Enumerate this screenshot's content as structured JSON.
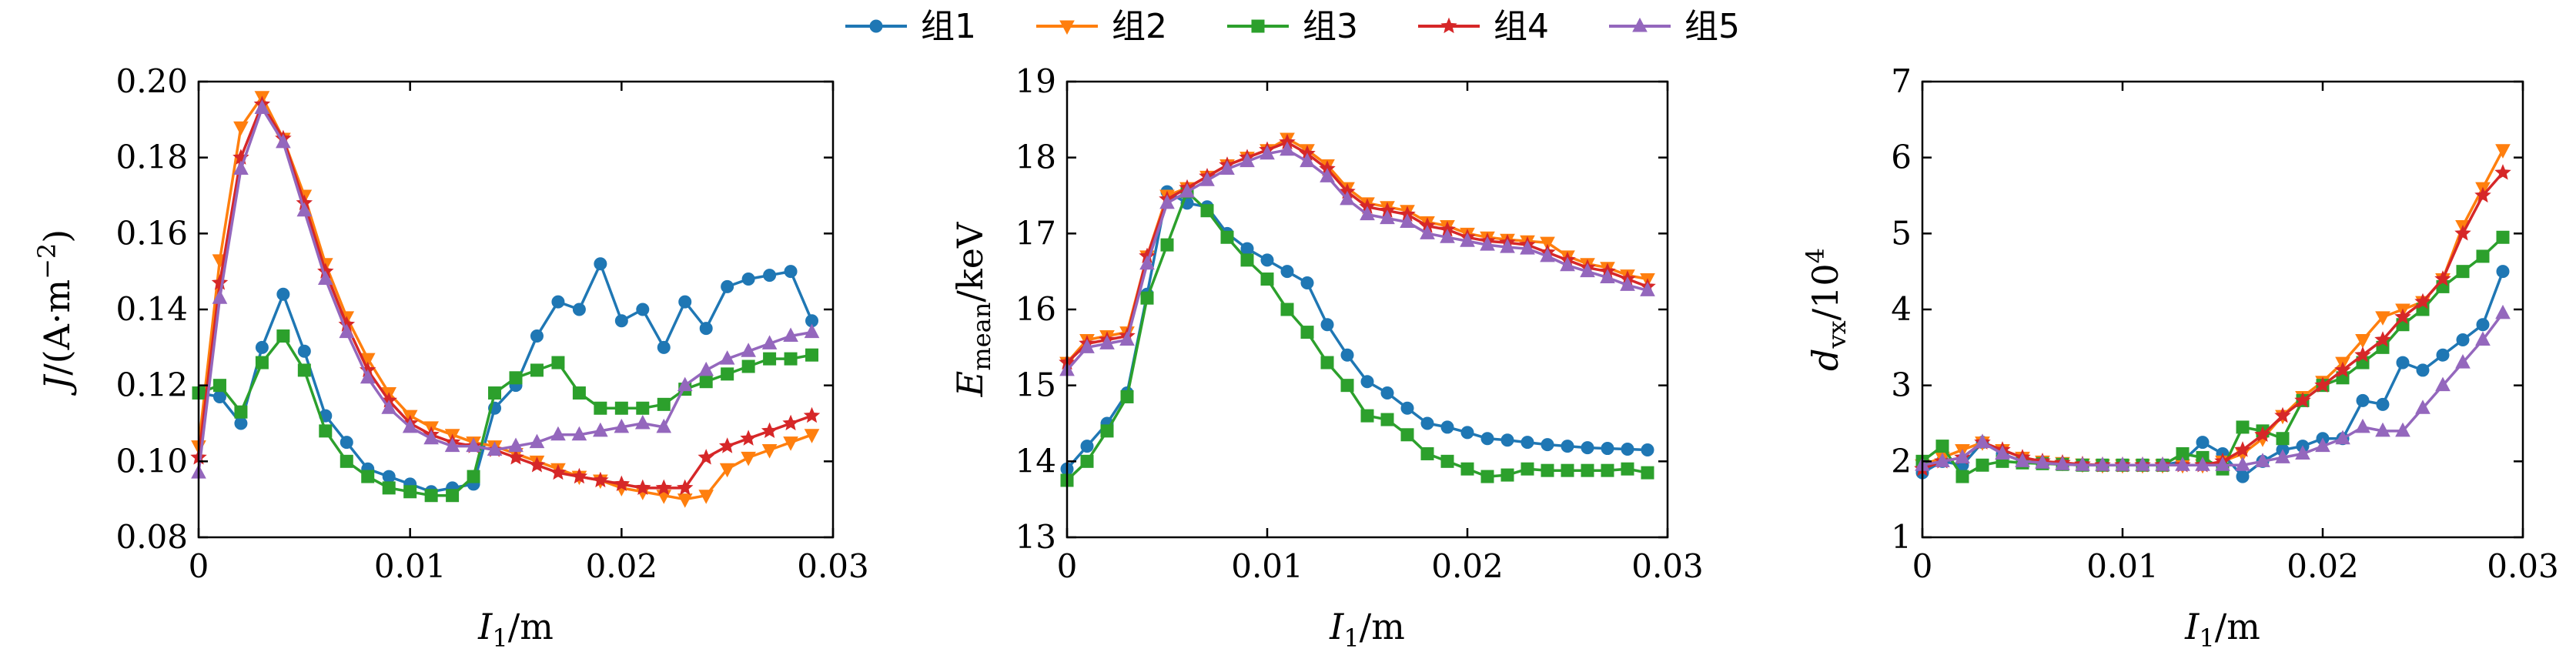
{
  "chart_data": [
    {
      "type": "line",
      "xlabel": "I1/m",
      "ylabel": "J/(A·m^-2)",
      "xlim": [
        0,
        0.03
      ],
      "ylim": [
        0.08,
        0.2
      ],
      "xticks": [
        0,
        0.01,
        0.02,
        0.03
      ],
      "xtick_labels": [
        "0",
        "0.01",
        "0.02",
        "0.03"
      ],
      "yticks": [
        0.08,
        0.1,
        0.12,
        0.14,
        0.16,
        0.18,
        0.2
      ],
      "ytick_labels": [
        "0.08",
        "0.10",
        "0.12",
        "0.14",
        "0.16",
        "0.18",
        "0.20"
      ],
      "grid": false,
      "x": [
        0,
        0.001,
        0.002,
        0.003,
        0.004,
        0.005,
        0.006,
        0.007,
        0.008,
        0.009,
        0.01,
        0.011,
        0.012,
        0.013,
        0.014,
        0.015,
        0.016,
        0.017,
        0.018,
        0.019,
        0.02,
        0.021,
        0.022,
        0.023,
        0.024,
        0.025,
        0.026,
        0.027,
        0.028,
        0.029
      ],
      "series": [
        {
          "name": "组1",
          "values": [
            0.118,
            0.117,
            0.11,
            0.13,
            0.144,
            0.129,
            0.112,
            0.105,
            0.098,
            0.096,
            0.094,
            0.092,
            0.093,
            0.094,
            0.114,
            0.12,
            0.133,
            0.142,
            0.14,
            0.152,
            0.137,
            0.14,
            0.13,
            0.142,
            0.135,
            0.146,
            0.148,
            0.149,
            0.15,
            0.137
          ]
        },
        {
          "name": "组2",
          "values": [
            0.104,
            0.153,
            0.188,
            0.196,
            0.185,
            0.17,
            0.152,
            0.138,
            0.127,
            0.118,
            0.112,
            0.109,
            0.107,
            0.105,
            0.104,
            0.102,
            0.1,
            0.098,
            0.096,
            0.095,
            0.093,
            0.092,
            0.091,
            0.09,
            0.091,
            0.098,
            0.101,
            0.103,
            0.105,
            0.107
          ]
        },
        {
          "name": "组3",
          "values": [
            0.118,
            0.12,
            0.113,
            0.126,
            0.133,
            0.124,
            0.108,
            0.1,
            0.096,
            0.093,
            0.092,
            0.091,
            0.091,
            0.096,
            0.118,
            0.122,
            0.124,
            0.126,
            0.118,
            0.114,
            0.114,
            0.114,
            0.115,
            0.119,
            0.121,
            0.123,
            0.125,
            0.127,
            0.127,
            0.128
          ]
        },
        {
          "name": "组4",
          "values": [
            0.101,
            0.147,
            0.18,
            0.194,
            0.185,
            0.168,
            0.15,
            0.136,
            0.124,
            0.116,
            0.11,
            0.107,
            0.105,
            0.104,
            0.103,
            0.101,
            0.099,
            0.097,
            0.096,
            0.095,
            0.094,
            0.093,
            0.093,
            0.093,
            0.101,
            0.104,
            0.106,
            0.108,
            0.11,
            0.112
          ]
        },
        {
          "name": "组5",
          "values": [
            0.097,
            0.143,
            0.177,
            0.193,
            0.184,
            0.166,
            0.148,
            0.134,
            0.122,
            0.114,
            0.109,
            0.106,
            0.104,
            0.104,
            0.103,
            0.104,
            0.105,
            0.107,
            0.107,
            0.108,
            0.109,
            0.11,
            0.109,
            0.12,
            0.124,
            0.127,
            0.129,
            0.131,
            0.133,
            0.134
          ]
        }
      ]
    },
    {
      "type": "line",
      "xlabel": "I1/m",
      "ylabel": "E_mean/keV",
      "xlim": [
        0,
        0.03
      ],
      "ylim": [
        13,
        19
      ],
      "xticks": [
        0,
        0.01,
        0.02,
        0.03
      ],
      "xtick_labels": [
        "0",
        "0.01",
        "0.02",
        "0.03"
      ],
      "yticks": [
        13,
        14,
        15,
        16,
        17,
        18,
        19
      ],
      "ytick_labels": [
        "13",
        "14",
        "15",
        "16",
        "17",
        "18",
        "19"
      ],
      "grid": false,
      "x": [
        0,
        0.001,
        0.002,
        0.003,
        0.004,
        0.005,
        0.006,
        0.007,
        0.008,
        0.009,
        0.01,
        0.011,
        0.012,
        0.013,
        0.014,
        0.015,
        0.016,
        0.017,
        0.018,
        0.019,
        0.02,
        0.021,
        0.022,
        0.023,
        0.024,
        0.025,
        0.026,
        0.027,
        0.028,
        0.029
      ],
      "series": [
        {
          "name": "组1",
          "values": [
            13.9,
            14.2,
            14.5,
            14.9,
            16.2,
            17.55,
            17.4,
            17.35,
            17.0,
            16.8,
            16.65,
            16.5,
            16.35,
            15.8,
            15.4,
            15.05,
            14.9,
            14.7,
            14.5,
            14.45,
            14.38,
            14.3,
            14.28,
            14.25,
            14.22,
            14.2,
            14.18,
            14.17,
            14.16,
            14.15
          ]
        },
        {
          "name": "组2",
          "values": [
            15.3,
            15.6,
            15.65,
            15.7,
            16.7,
            17.5,
            17.6,
            17.75,
            17.9,
            18.0,
            18.1,
            18.25,
            18.1,
            17.9,
            17.6,
            17.4,
            17.35,
            17.3,
            17.15,
            17.1,
            17.0,
            16.95,
            16.92,
            16.9,
            16.88,
            16.7,
            16.6,
            16.55,
            16.45,
            16.4
          ]
        },
        {
          "name": "组3",
          "values": [
            13.75,
            14.0,
            14.4,
            14.85,
            16.15,
            16.85,
            17.55,
            17.3,
            16.95,
            16.65,
            16.4,
            16.0,
            15.7,
            15.3,
            15.0,
            14.6,
            14.55,
            14.35,
            14.1,
            14.0,
            13.9,
            13.8,
            13.82,
            13.9,
            13.88,
            13.88,
            13.88,
            13.88,
            13.9,
            13.85
          ]
        },
        {
          "name": "组4",
          "values": [
            15.3,
            15.55,
            15.6,
            15.65,
            16.7,
            17.45,
            17.6,
            17.75,
            17.9,
            18.0,
            18.1,
            18.2,
            18.05,
            17.85,
            17.55,
            17.35,
            17.3,
            17.25,
            17.1,
            17.05,
            16.95,
            16.9,
            16.88,
            16.85,
            16.75,
            16.65,
            16.55,
            16.5,
            16.4,
            16.3
          ]
        },
        {
          "name": "组5",
          "values": [
            15.2,
            15.5,
            15.55,
            15.6,
            16.6,
            17.4,
            17.55,
            17.7,
            17.85,
            17.95,
            18.05,
            18.1,
            17.95,
            17.75,
            17.45,
            17.25,
            17.2,
            17.15,
            17.0,
            16.95,
            16.9,
            16.85,
            16.82,
            16.8,
            16.7,
            16.58,
            16.5,
            16.42,
            16.32,
            16.25
          ]
        }
      ]
    },
    {
      "type": "line",
      "xlabel": "I1/m",
      "ylabel": "d_vx/10^4",
      "xlim": [
        0,
        0.03
      ],
      "ylim": [
        1,
        7
      ],
      "xticks": [
        0,
        0.01,
        0.02,
        0.03
      ],
      "xtick_labels": [
        "0",
        "0.01",
        "0.02",
        "0.03"
      ],
      "yticks": [
        1,
        2,
        3,
        4,
        5,
        6,
        7
      ],
      "ytick_labels": [
        "1",
        "2",
        "3",
        "4",
        "5",
        "6",
        "7"
      ],
      "grid": false,
      "x": [
        0,
        0.001,
        0.002,
        0.003,
        0.004,
        0.005,
        0.006,
        0.007,
        0.008,
        0.009,
        0.01,
        0.011,
        0.012,
        0.013,
        0.014,
        0.015,
        0.016,
        0.017,
        0.018,
        0.019,
        0.02,
        0.021,
        0.022,
        0.023,
        0.024,
        0.025,
        0.026,
        0.027,
        0.028,
        0.029
      ],
      "series": [
        {
          "name": "组1",
          "values": [
            1.85,
            2.0,
            1.95,
            2.25,
            2.1,
            2.0,
            1.98,
            1.97,
            1.95,
            1.95,
            1.95,
            1.95,
            1.95,
            2.0,
            2.25,
            2.1,
            1.8,
            2.0,
            2.15,
            2.2,
            2.3,
            2.3,
            2.8,
            2.75,
            3.3,
            3.2,
            3.4,
            3.6,
            3.8,
            4.5
          ]
        },
        {
          "name": "组2",
          "values": [
            1.95,
            2.05,
            2.15,
            2.25,
            2.15,
            2.05,
            2.0,
            1.98,
            1.96,
            1.95,
            1.95,
            1.95,
            1.95,
            1.95,
            1.95,
            2.0,
            2.1,
            2.3,
            2.6,
            2.85,
            3.05,
            3.3,
            3.6,
            3.9,
            4.0,
            4.1,
            4.4,
            5.1,
            5.6,
            6.1
          ]
        },
        {
          "name": "组3",
          "values": [
            2.0,
            2.2,
            1.8,
            1.95,
            2.0,
            1.98,
            1.97,
            1.96,
            1.95,
            1.95,
            1.95,
            1.95,
            1.95,
            2.1,
            2.05,
            1.9,
            2.45,
            2.4,
            2.3,
            2.8,
            3.0,
            3.1,
            3.3,
            3.5,
            3.8,
            4.0,
            4.3,
            4.5,
            4.7,
            4.95
          ]
        },
        {
          "name": "组4",
          "values": [
            1.9,
            2.0,
            2.05,
            2.25,
            2.15,
            2.05,
            2.0,
            1.98,
            1.96,
            1.95,
            1.95,
            1.95,
            1.95,
            1.95,
            1.95,
            2.0,
            2.15,
            2.35,
            2.6,
            2.8,
            3.0,
            3.2,
            3.4,
            3.6,
            3.9,
            4.1,
            4.4,
            5.0,
            5.5,
            5.8
          ]
        },
        {
          "name": "组5",
          "values": [
            1.95,
            2.0,
            2.05,
            2.25,
            2.1,
            2.0,
            1.98,
            1.96,
            1.95,
            1.95,
            1.95,
            1.95,
            1.95,
            1.95,
            1.95,
            1.95,
            1.95,
            2.0,
            2.05,
            2.1,
            2.2,
            2.3,
            2.45,
            2.4,
            2.4,
            2.7,
            3.0,
            3.3,
            3.6,
            3.95
          ]
        }
      ]
    }
  ],
  "legend": {
    "placement": "top-center",
    "items": [
      {
        "label": "组1",
        "color": "#1f77b4",
        "marker": "circle"
      },
      {
        "label": "组2",
        "color": "#ff7f0e",
        "marker": "triangle-down"
      },
      {
        "label": "组3",
        "color": "#2ca02c",
        "marker": "square"
      },
      {
        "label": "组4",
        "color": "#d62728",
        "marker": "star"
      },
      {
        "label": "组5",
        "color": "#9467bd",
        "marker": "triangle-up"
      }
    ]
  }
}
